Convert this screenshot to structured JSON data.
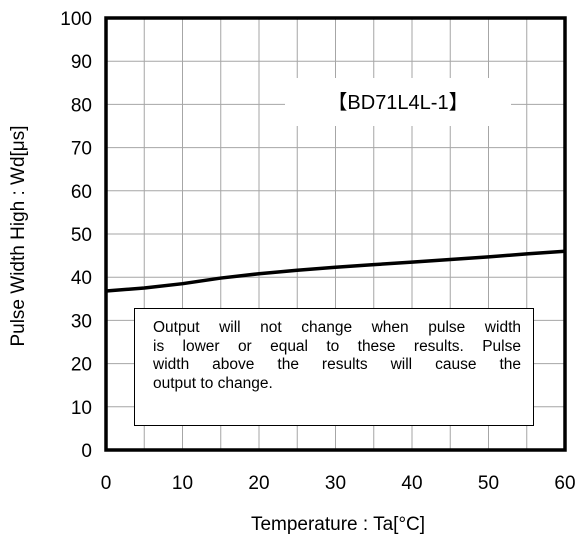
{
  "chart_data": {
    "type": "line",
    "title": "",
    "xlabel": "Temperature : Ta[°C]",
    "ylabel": "Pulse Width High : Wd[μs]",
    "xlim": [
      0,
      60
    ],
    "ylim": [
      0,
      100
    ],
    "x_ticks": [
      "0",
      "10",
      "20",
      "30",
      "40",
      "50",
      "60"
    ],
    "y_ticks": [
      "0",
      "10",
      "20",
      "30",
      "40",
      "50",
      "60",
      "70",
      "80",
      "90",
      "100"
    ],
    "grid": true,
    "legend": "none",
    "series": [
      {
        "name": "",
        "color": "#000000",
        "x": [
          0,
          5,
          10,
          15,
          20,
          25,
          30,
          35,
          40,
          45,
          50,
          55,
          60
        ],
        "y": [
          36.8,
          37.5,
          38.5,
          39.8,
          40.8,
          41.6,
          42.3,
          42.9,
          43.5,
          44.1,
          44.7,
          45.4,
          46.0
        ]
      }
    ],
    "annotations": {
      "device_label": "【BD71L4L-1】",
      "note_lines": [
        "Output will not change when pulse width",
        "is lower or equal to these results. Pulse",
        "width above the results will cause the",
        "output to change."
      ]
    }
  }
}
